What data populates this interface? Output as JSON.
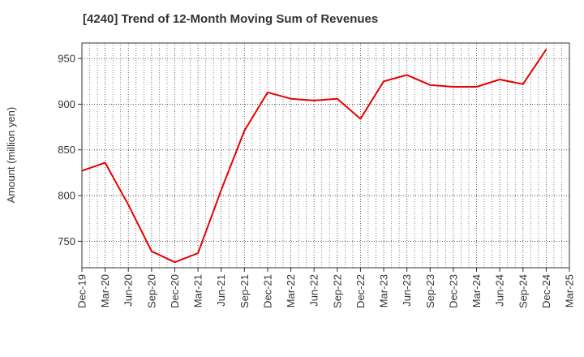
{
  "chart_data": {
    "type": "line",
    "title": "[4240]  Trend of 12-Month Moving Sum of Revenues",
    "xlabel": "",
    "ylabel": "Amount (million yen)",
    "ylim": [
      721,
      967
    ],
    "yticks": [
      750,
      800,
      850,
      900,
      950
    ],
    "grid": true,
    "legend": "none",
    "x": [
      "Dec-19",
      "Mar-20",
      "Jun-20",
      "Sep-20",
      "Dec-20",
      "Mar-21",
      "Jun-21",
      "Sep-21",
      "Dec-21",
      "Mar-22",
      "Jun-22",
      "Sep-22",
      "Dec-22",
      "Mar-23",
      "Jun-23",
      "Sep-23",
      "Dec-23",
      "Mar-24",
      "Jun-24",
      "Sep-24",
      "Dec-24",
      "Mar-25"
    ],
    "series": [
      {
        "color": "#e60000",
        "values": [
          827,
          836,
          790,
          739,
          727,
          737,
          806,
          871,
          913,
          906,
          904,
          906,
          884,
          925,
          932,
          921,
          919,
          919,
          927,
          922,
          960,
          null
        ]
      }
    ]
  }
}
